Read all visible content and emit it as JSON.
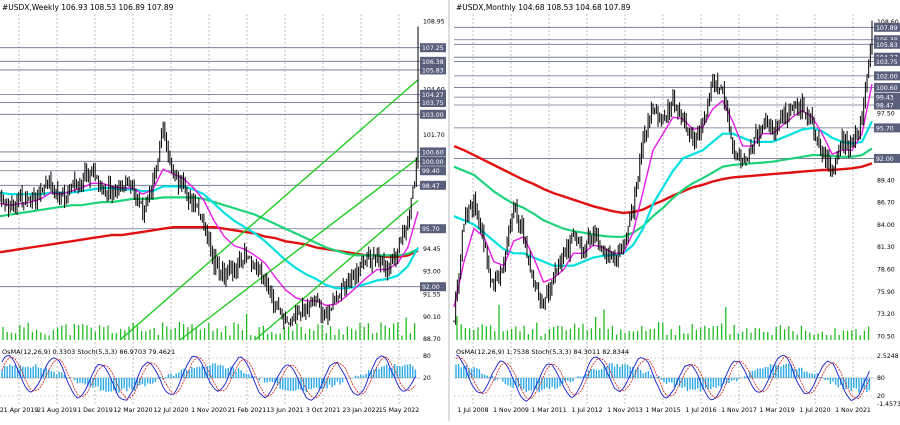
{
  "colors": {
    "price": "#000000",
    "ema_fast": "#e81ce8",
    "ema_mid": "#00e0e0",
    "ema_slow": "#1fd37a",
    "ema_long": "#e01010",
    "channel": "#22cc22",
    "volume": "#22bb22",
    "hist": "#29a9e6",
    "signal": "#1b1bcf",
    "stoch_main": "#7b3cc8",
    "stoch_signal": "#d01a1a",
    "level_line": "#6a6f8e"
  },
  "chart_data": [
    {
      "type": "line",
      "title": "#USDX,Weekly  106.93 108.53 106.89 107.89",
      "x_labels": [
        "21 Apr 2019",
        "21 Aug 2019",
        "1 Dec 2019",
        "12 Mar 2020",
        "12 Jul 2020",
        "1 Nov 2020",
        "21 Feb 2021",
        "13 Jun 2021",
        "3 Oct 2021",
        "23 Jan 2022",
        "15 May 2022"
      ],
      "y_ticks": [
        108.95,
        107.25,
        106.38,
        105.83,
        104.6,
        104.27,
        103.75,
        103.0,
        101.7,
        100.6,
        100.0,
        99.4,
        98.47,
        95.7,
        94.45,
        93.0,
        91.55,
        90.1,
        88.7
      ],
      "ylim": [
        88.6,
        109.4
      ],
      "x": [
        0,
        4,
        8,
        12,
        16,
        20,
        24,
        28,
        32,
        36,
        40,
        44,
        48,
        52,
        56,
        60,
        64,
        68,
        72,
        76,
        80,
        84,
        88,
        92,
        96,
        100,
        104,
        108,
        112,
        116,
        120,
        124,
        128,
        132,
        136,
        140,
        144,
        148,
        152,
        156,
        160,
        164
      ],
      "close": [
        97.4,
        97.0,
        97.6,
        97.4,
        98.1,
        98.7,
        97.5,
        98.3,
        98.8,
        99.4,
        98.4,
        98.1,
        98.1,
        98.3,
        96.9,
        98.7,
        102.5,
        99.0,
        98.4,
        97.2,
        95.9,
        93.7,
        92.8,
        93.2,
        94.0,
        93.2,
        92.4,
        90.7,
        89.9,
        90.2,
        90.7,
        91.2,
        90.0,
        91.2,
        92.3,
        93.0,
        93.6,
        94.0,
        93.0,
        94.2,
        96.0,
        100.5
      ],
      "series": [
        {
          "name": "EMA fast",
          "values": [
            97.3,
            97.2,
            97.3,
            97.4,
            97.6,
            98.0,
            97.9,
            98.1,
            98.3,
            98.6,
            98.6,
            98.4,
            98.3,
            98.3,
            97.9,
            98.2,
            99.5,
            99.2,
            98.9,
            98.3,
            97.5,
            96.2,
            95.2,
            94.6,
            94.4,
            94.0,
            93.5,
            92.6,
            91.8,
            91.3,
            91.1,
            91.1,
            90.8,
            90.9,
            91.4,
            92.0,
            92.6,
            93.1,
            93.1,
            93.5,
            94.5,
            96.8
          ]
        },
        {
          "name": "EMA mid",
          "values": [
            98.0,
            97.9,
            97.9,
            97.9,
            97.9,
            98.0,
            98.0,
            98.0,
            98.1,
            98.2,
            98.3,
            98.3,
            98.2,
            98.2,
            98.1,
            98.1,
            98.4,
            98.4,
            98.4,
            98.2,
            97.9,
            97.3,
            96.7,
            96.2,
            95.8,
            95.4,
            94.9,
            94.3,
            93.7,
            93.2,
            92.8,
            92.5,
            92.1,
            91.9,
            91.9,
            92.0,
            92.2,
            92.4,
            92.5,
            92.7,
            93.3,
            94.5
          ]
        },
        {
          "name": "EMA slow",
          "values": [
            96.5,
            96.6,
            96.7,
            96.8,
            96.9,
            97.0,
            97.1,
            97.2,
            97.2,
            97.3,
            97.4,
            97.4,
            97.5,
            97.6,
            97.6,
            97.6,
            97.7,
            97.7,
            97.7,
            97.7,
            97.6,
            97.4,
            97.2,
            97.0,
            96.8,
            96.6,
            96.3,
            96.0,
            95.7,
            95.4,
            95.1,
            94.8,
            94.5,
            94.3,
            94.1,
            94.0,
            94.0,
            94.0,
            94.0,
            94.0,
            94.1,
            94.4
          ]
        },
        {
          "name": "EMA long",
          "values": [
            94.2,
            94.3,
            94.4,
            94.5,
            94.6,
            94.7,
            94.8,
            94.9,
            95.0,
            95.1,
            95.2,
            95.3,
            95.3,
            95.4,
            95.5,
            95.6,
            95.7,
            95.8,
            95.8,
            95.8,
            95.8,
            95.8,
            95.7,
            95.6,
            95.5,
            95.4,
            95.2,
            95.1,
            94.9,
            94.8,
            94.7,
            94.5,
            94.4,
            94.3,
            94.2,
            94.1,
            94.0,
            94.0,
            93.9,
            93.9,
            94.0,
            94.3
          ]
        }
      ]
    },
    {
      "type": "line",
      "title": "#USDX,Monthly  104.68 108.53 104.68 107.89",
      "x_labels": [
        "1 Jul 2008",
        "1 Nov 2009",
        "1 Mar 2011",
        "1 Jul 2012",
        "1 Nov 2013",
        "1 Mar 2015",
        "1 Jul 2016",
        "1 Nov 2017",
        "1 Mar 2019",
        "1 Jul 2020",
        "1 Nov 2021"
      ],
      "y_ticks": [
        108.6,
        107.89,
        106.38,
        104.27,
        102.0,
        100.6,
        99.43,
        98.47,
        95.7,
        92.0,
        89.4,
        86.7,
        84.0,
        81.3,
        78.6,
        75.9,
        73.2,
        70.5
      ],
      "ylim": [
        70.0,
        109.5
      ],
      "x": [
        0,
        4,
        8,
        12,
        16,
        20,
        24,
        28,
        32,
        36,
        40,
        44,
        48,
        52,
        56,
        60,
        64,
        68,
        72,
        76,
        80,
        84,
        88,
        92,
        96,
        100,
        104,
        108,
        112,
        116,
        120,
        124,
        128,
        132,
        136,
        140,
        144,
        148,
        152,
        156,
        160,
        164,
        168
      ],
      "close": [
        72.5,
        84.5,
        86.5,
        81.5,
        76.5,
        79.0,
        86.0,
        82.5,
        77.0,
        74.0,
        78.0,
        80.0,
        82.5,
        80.5,
        83.0,
        81.0,
        80.0,
        80.5,
        86.0,
        94.0,
        98.5,
        96.5,
        99.0,
        96.5,
        94.5,
        96.0,
        101.0,
        100.0,
        93.5,
        91.0,
        93.5,
        96.5,
        95.0,
        97.0,
        98.0,
        98.5,
        96.5,
        92.5,
        90.5,
        94.0,
        93.0,
        97.0,
        107.5
      ],
      "series": [
        {
          "name": "EMA fast",
          "values": [
            74.0,
            79.5,
            83.5,
            82.5,
            79.5,
            79.0,
            82.0,
            82.5,
            80.0,
            77.0,
            77.5,
            78.5,
            80.5,
            80.5,
            81.5,
            81.2,
            80.5,
            80.5,
            83.0,
            88.0,
            93.0,
            95.0,
            97.0,
            96.8,
            95.5,
            95.8,
            98.0,
            99.0,
            96.5,
            93.5,
            93.5,
            95.0,
            95.0,
            96.0,
            97.0,
            97.8,
            97.0,
            95.0,
            92.5,
            93.0,
            93.0,
            95.0,
            101.0
          ]
        },
        {
          "name": "EMA mid",
          "values": [
            85.0,
            84.5,
            84.0,
            83.0,
            82.0,
            81.0,
            80.5,
            80.5,
            80.0,
            79.5,
            79.0,
            79.0,
            79.0,
            79.5,
            80.0,
            80.2,
            80.3,
            80.5,
            81.5,
            83.5,
            86.5,
            88.5,
            90.5,
            92.0,
            92.5,
            93.0,
            94.0,
            95.0,
            95.0,
            94.5,
            94.0,
            94.0,
            94.0,
            94.5,
            95.0,
            95.5,
            95.7,
            95.3,
            94.5,
            94.0,
            93.8,
            94.0,
            96.5
          ]
        },
        {
          "name": "EMA slow",
          "values": [
            91.0,
            90.5,
            90.0,
            89.0,
            88.0,
            87.2,
            86.5,
            86.0,
            85.3,
            84.5,
            84.0,
            83.5,
            83.2,
            83.0,
            82.8,
            82.6,
            82.5,
            82.5,
            83.0,
            83.8,
            85.0,
            86.0,
            87.2,
            88.2,
            89.0,
            89.6,
            90.3,
            91.0,
            91.2,
            91.3,
            91.4,
            91.5,
            91.6,
            91.8,
            92.0,
            92.2,
            92.4,
            92.4,
            92.3,
            92.2,
            92.2,
            92.4,
            93.2
          ]
        },
        {
          "name": "EMA long",
          "values": [
            93.5,
            93.0,
            92.4,
            91.8,
            91.2,
            90.6,
            90.0,
            89.4,
            88.9,
            88.3,
            87.8,
            87.4,
            87.0,
            86.6,
            86.2,
            85.9,
            85.6,
            85.4,
            85.5,
            85.8,
            86.4,
            86.9,
            87.5,
            88.0,
            88.5,
            88.8,
            89.2,
            89.5,
            89.7,
            89.8,
            89.9,
            90.0,
            90.1,
            90.2,
            90.3,
            90.4,
            90.5,
            90.6,
            90.6,
            90.7,
            90.8,
            91.0,
            91.4
          ]
        }
      ]
    }
  ],
  "left_panel": {
    "title": "#USDX,Weekly  106.93 108.53 106.89 107.89",
    "osc_label": "OsMA(12,26,9) 0.3303  Stoch(5,3,3) 86.9703 79.4621",
    "osc_ticks": [
      "80",
      "20"
    ],
    "price_tags": [
      {
        "label": "108.95",
        "v": 108.95,
        "dark": false
      },
      {
        "label": "107.25",
        "v": 107.25,
        "dark": true
      },
      {
        "label": "106.38",
        "v": 106.38,
        "dark": true
      },
      {
        "label": "105.83",
        "v": 105.83,
        "dark": true
      },
      {
        "label": "104.60",
        "v": 104.6,
        "dark": false
      },
      {
        "label": "104.27",
        "v": 104.27,
        "dark": true
      },
      {
        "label": "103.75",
        "v": 103.75,
        "dark": true
      },
      {
        "label": "103.00",
        "v": 103.0,
        "dark": true
      },
      {
        "label": "101.70",
        "v": 101.7,
        "dark": false
      },
      {
        "label": "100.60",
        "v": 100.6,
        "dark": true
      },
      {
        "label": "100.00",
        "v": 100.0,
        "dark": true
      },
      {
        "label": "99.40",
        "v": 99.4,
        "dark": true
      },
      {
        "label": "98.47",
        "v": 98.47,
        "dark": true
      },
      {
        "label": "95.70",
        "v": 95.7,
        "dark": true
      },
      {
        "label": "94.45",
        "v": 94.45,
        "dark": false
      },
      {
        "label": "93.00",
        "v": 93.0,
        "dark": false
      },
      {
        "label": "92.00",
        "v": 92.0,
        "dark": true
      },
      {
        "label": "91.55",
        "v": 91.55,
        "dark": false
      },
      {
        "label": "90.10",
        "v": 90.1,
        "dark": false
      },
      {
        "label": "88.70",
        "v": 88.7,
        "dark": false
      }
    ]
  },
  "right_panel": {
    "title": "#USDX,Monthly  104.68 108.53 104.68 107.89",
    "osc_label": "OsMA(12,26,9) 1.7538  Stoch(5,3,3) 84.3011 82.8344",
    "osc_ticks": [
      "2.5248",
      "80",
      "20",
      "-1.4573"
    ],
    "price_tags": [
      {
        "label": "108.60",
        "v": 108.6,
        "dark": false
      },
      {
        "label": "107.89",
        "v": 107.89,
        "dark": true
      },
      {
        "label": "106.38",
        "v": 106.38,
        "dark": true
      },
      {
        "label": "105.83",
        "v": 105.83,
        "dark": true
      },
      {
        "label": "104.27",
        "v": 104.27,
        "dark": true
      },
      {
        "label": "103.75",
        "v": 103.75,
        "dark": true
      },
      {
        "label": "102.00",
        "v": 102.0,
        "dark": true
      },
      {
        "label": "100.60",
        "v": 100.6,
        "dark": true
      },
      {
        "label": "99.43",
        "v": 99.43,
        "dark": true
      },
      {
        "label": "98.47",
        "v": 98.47,
        "dark": true
      },
      {
        "label": "97.50",
        "v": 97.5,
        "dark": false
      },
      {
        "label": "95.70",
        "v": 95.7,
        "dark": true
      },
      {
        "label": "92.00",
        "v": 92.0,
        "dark": true
      },
      {
        "label": "89.40",
        "v": 89.4,
        "dark": false
      },
      {
        "label": "86.70",
        "v": 86.7,
        "dark": false
      },
      {
        "label": "84.00",
        "v": 84.0,
        "dark": false
      },
      {
        "label": "81.30",
        "v": 81.3,
        "dark": false
      },
      {
        "label": "78.60",
        "v": 78.6,
        "dark": false
      },
      {
        "label": "75.90",
        "v": 75.9,
        "dark": false
      },
      {
        "label": "73.20",
        "v": 73.2,
        "dark": false
      },
      {
        "label": "70.50",
        "v": 70.5,
        "dark": false
      }
    ]
  }
}
